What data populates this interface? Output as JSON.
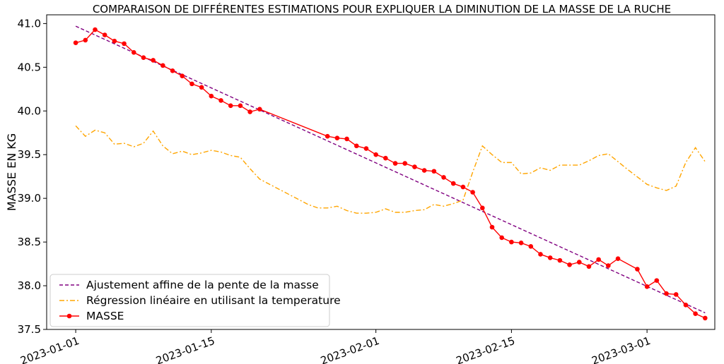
{
  "chart_data": {
    "type": "line",
    "title": "COMPARAISON DE DIFFÉRENTES ESTIMATIONS POUR EXPLIQUER LA DIMINUTION DE LA MASSE DE LA RUCHE",
    "xlabel": "",
    "ylabel": "MASSE EN KG",
    "ylim": [
      37.5,
      41.1
    ],
    "xlim": [
      "2022-12-29",
      "2023-03-08"
    ],
    "y_ticks": [
      "37.5",
      "38.0",
      "38.5",
      "39.0",
      "39.5",
      "40.0",
      "40.5",
      "41.0"
    ],
    "x_ticks": [
      "2023-01-01",
      "2023-01-15",
      "2023-02-01",
      "2023-02-15",
      "2023-03-01"
    ],
    "grid": false,
    "legend_position": "lower-left",
    "colors": {
      "affine": "#800080",
      "regression": "#ffa500",
      "masse": "#ff0000"
    },
    "series": [
      {
        "name": "Ajustement affine de la pente de la masse",
        "style": "dashed",
        "x": [
          "2023-01-01",
          "2023-03-07"
        ],
        "y": [
          40.97,
          37.69
        ]
      },
      {
        "name": "Régression linéaire en utilisant la temperature",
        "style": "dashdot",
        "x": [
          "2023-01-01",
          "2023-01-02",
          "2023-01-03",
          "2023-01-04",
          "2023-01-05",
          "2023-01-06",
          "2023-01-07",
          "2023-01-08",
          "2023-01-09",
          "2023-01-10",
          "2023-01-11",
          "2023-01-12",
          "2023-01-13",
          "2023-01-14",
          "2023-01-15",
          "2023-01-16",
          "2023-01-17",
          "2023-01-18",
          "2023-01-19",
          "2023-01-20",
          "2023-01-25",
          "2023-01-26",
          "2023-01-27",
          "2023-01-28",
          "2023-01-29",
          "2023-01-30",
          "2023-01-31",
          "2023-02-01",
          "2023-02-02",
          "2023-02-03",
          "2023-02-04",
          "2023-02-05",
          "2023-02-06",
          "2023-02-07",
          "2023-02-08",
          "2023-02-09",
          "2023-02-10",
          "2023-02-11",
          "2023-02-12",
          "2023-02-13",
          "2023-02-14",
          "2023-02-15",
          "2023-02-16",
          "2023-02-17",
          "2023-02-18",
          "2023-02-19",
          "2023-02-20",
          "2023-02-21",
          "2023-02-22",
          "2023-02-23",
          "2023-02-24",
          "2023-02-25",
          "2023-02-26",
          "2023-02-27",
          "2023-03-01",
          "2023-03-02",
          "2023-03-03",
          "2023-03-04",
          "2023-03-05",
          "2023-03-06",
          "2023-03-07"
        ],
        "y": [
          39.83,
          39.71,
          39.78,
          39.75,
          39.62,
          39.63,
          39.59,
          39.63,
          39.77,
          39.6,
          39.51,
          39.54,
          39.5,
          39.52,
          39.55,
          39.53,
          39.49,
          39.47,
          39.34,
          39.22,
          38.93,
          38.89,
          38.89,
          38.91,
          38.86,
          38.83,
          38.83,
          38.84,
          38.88,
          38.84,
          38.84,
          38.86,
          38.87,
          38.93,
          38.91,
          38.94,
          38.98,
          39.3,
          39.6,
          39.5,
          39.41,
          39.41,
          39.28,
          39.29,
          39.35,
          39.32,
          39.38,
          39.38,
          39.38,
          39.43,
          39.49,
          39.51,
          39.42,
          39.33,
          39.16,
          39.12,
          39.09,
          39.14,
          39.41,
          39.58,
          39.42
        ]
      },
      {
        "name": "MASSE",
        "style": "solid-markers",
        "x": [
          "2023-01-01",
          "2023-01-02",
          "2023-01-03",
          "2023-01-04",
          "2023-01-05",
          "2023-01-06",
          "2023-01-07",
          "2023-01-08",
          "2023-01-09",
          "2023-01-10",
          "2023-01-11",
          "2023-01-12",
          "2023-01-13",
          "2023-01-14",
          "2023-01-15",
          "2023-01-16",
          "2023-01-17",
          "2023-01-18",
          "2023-01-19",
          "2023-01-20",
          "2023-01-27",
          "2023-01-28",
          "2023-01-29",
          "2023-01-30",
          "2023-01-31",
          "2023-02-01",
          "2023-02-02",
          "2023-02-03",
          "2023-02-04",
          "2023-02-05",
          "2023-02-06",
          "2023-02-07",
          "2023-02-08",
          "2023-02-09",
          "2023-02-10",
          "2023-02-11",
          "2023-02-12",
          "2023-02-13",
          "2023-02-14",
          "2023-02-15",
          "2023-02-16",
          "2023-02-17",
          "2023-02-18",
          "2023-02-19",
          "2023-02-20",
          "2023-02-21",
          "2023-02-22",
          "2023-02-23",
          "2023-02-24",
          "2023-02-25",
          "2023-02-26",
          "2023-02-28",
          "2023-03-01",
          "2023-03-02",
          "2023-03-03",
          "2023-03-04",
          "2023-03-05",
          "2023-03-06",
          "2023-03-07"
        ],
        "y": [
          40.78,
          40.81,
          40.93,
          40.87,
          40.8,
          40.77,
          40.67,
          40.61,
          40.58,
          40.52,
          40.46,
          40.4,
          40.31,
          40.27,
          40.17,
          40.12,
          40.06,
          40.06,
          39.99,
          40.02,
          39.71,
          39.69,
          39.68,
          39.6,
          39.57,
          39.5,
          39.46,
          39.4,
          39.4,
          39.36,
          39.32,
          39.31,
          39.24,
          39.17,
          39.13,
          39.07,
          38.89,
          38.67,
          38.55,
          38.5,
          38.49,
          38.45,
          38.36,
          38.32,
          38.29,
          38.24,
          38.27,
          38.22,
          38.3,
          38.23,
          38.31,
          38.19,
          37.99,
          38.06,
          37.91,
          37.9,
          37.78,
          37.68,
          37.63
        ]
      }
    ]
  }
}
